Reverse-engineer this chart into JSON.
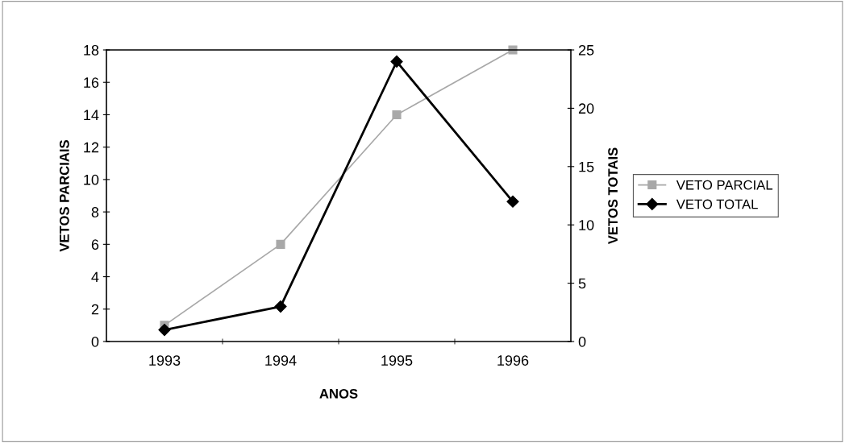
{
  "chart_data": {
    "type": "line",
    "xlabel": "ANOS",
    "ylabel": "VETOS PARCIAIS",
    "y2label": "VETOS TOTAIS",
    "categories": [
      "1993",
      "1994",
      "1995",
      "1996"
    ],
    "series": [
      {
        "name": "VETO PARCIAL",
        "color": "#a8a8a8",
        "values": [
          1,
          6,
          14,
          18
        ],
        "marker": "square"
      },
      {
        "name": "VETO TOTAL",
        "color": "#000000",
        "values": [
          1,
          3,
          24,
          12
        ],
        "marker": "diamond",
        "axis": "y2"
      }
    ],
    "ylim": [
      0,
      18
    ],
    "yticks": [
      0,
      2,
      4,
      6,
      8,
      10,
      12,
      14,
      16,
      18
    ],
    "y2lim": [
      0,
      25
    ],
    "y2ticks": [
      0,
      5,
      10,
      15,
      20,
      25
    ],
    "grid": false,
    "legend": "right"
  }
}
